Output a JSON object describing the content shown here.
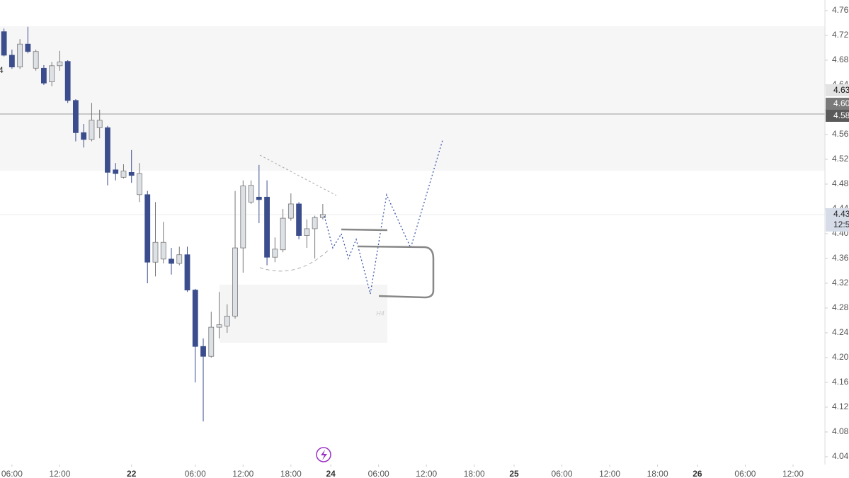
{
  "chart_data": {
    "type": "candlestick",
    "xlim": [
      -0.5,
      103
    ],
    "ylim": [
      4.0274,
      4.7771
    ],
    "yticks": [
      4.04,
      4.08,
      4.12,
      4.16,
      {
        "value": 4.2,
        "label": "4.20"
      },
      4.24,
      4.28,
      4.32,
      4.36,
      {
        "value": 4.4,
        "label": "4.40"
      },
      4.44,
      4.48,
      4.52,
      4.56,
      {
        "value": 4.6,
        "label": "4.60"
      },
      4.64,
      4.68,
      4.72,
      4.76
    ],
    "xticks": [
      {
        "value": 1,
        "label": "06:00"
      },
      {
        "value": 7,
        "label": "12:00"
      },
      {
        "value": 16,
        "label": "22"
      },
      {
        "value": 24,
        "label": "06:00"
      },
      {
        "value": 30,
        "label": "12:00"
      },
      {
        "value": 36,
        "label": "18:00"
      },
      {
        "value": 41,
        "label": "24"
      },
      {
        "value": 47,
        "label": "06:00"
      },
      {
        "value": 53,
        "label": "12:00"
      },
      {
        "value": 59,
        "label": "18:00"
      },
      {
        "value": 64,
        "label": "25"
      },
      {
        "value": 70,
        "label": "06:00"
      },
      {
        "value": 76,
        "label": "12:00"
      },
      {
        "value": 82,
        "label": "18:00"
      },
      {
        "value": 87,
        "label": "26"
      },
      {
        "value": 93,
        "label": "06:00"
      },
      {
        "value": 99,
        "label": "12:00"
      }
    ],
    "open": [
      4.726,
      4.688,
      4.669,
      4.706,
      4.667,
      4.667,
      4.645,
      4.671,
      4.678,
      4.615,
      4.563,
      4.552,
      4.571,
      4.571,
      4.503,
      4.491,
      4.499,
      4.463,
      4.463,
      4.354,
      4.359,
      4.359,
      4.352,
      4.366,
      4.309,
      4.218,
      4.202,
      4.249,
      4.251,
      4.267,
      4.377,
      4.451,
      4.459,
      4.459,
      4.362,
      4.374,
      4.425,
      4.448,
      4.397,
      4.408,
      4.426
    ],
    "high": [
      4.731,
      4.697,
      4.714,
      4.734,
      4.697,
      4.672,
      4.677,
      4.695,
      4.68,
      4.617,
      4.577,
      4.611,
      4.6,
      4.574,
      4.514,
      4.512,
      4.535,
      4.514,
      4.469,
      4.451,
      4.419,
      4.377,
      4.379,
      4.379,
      4.311,
      4.231,
      4.274,
      4.306,
      4.286,
      4.469,
      4.486,
      4.486,
      4.511,
      4.486,
      4.394,
      4.44,
      4.465,
      4.451,
      4.423,
      4.429,
      4.448
    ],
    "low": [
      4.686,
      4.666,
      4.666,
      4.691,
      4.663,
      4.64,
      4.638,
      4.663,
      4.611,
      4.549,
      4.539,
      4.549,
      4.554,
      4.478,
      4.486,
      4.489,
      4.482,
      4.451,
      4.32,
      4.331,
      4.352,
      4.334,
      4.349,
      4.306,
      4.16,
      4.097,
      4.2,
      4.231,
      4.24,
      4.263,
      4.337,
      4.448,
      4.417,
      4.349,
      4.354,
      4.37,
      4.421,
      4.391,
      4.377,
      4.36,
      4.423
    ],
    "close": [
      4.688,
      4.669,
      4.706,
      4.694,
      4.694,
      4.643,
      4.671,
      4.677,
      4.615,
      4.563,
      4.552,
      4.583,
      4.583,
      4.499,
      4.497,
      4.501,
      4.494,
      4.497,
      4.354,
      4.386,
      4.386,
      4.352,
      4.366,
      4.309,
      4.218,
      4.202,
      4.249,
      4.253,
      4.267,
      4.377,
      4.477,
      4.478,
      4.455,
      4.362,
      4.375,
      4.425,
      4.448,
      4.397,
      4.408,
      4.426,
      4.431
    ],
    "up_color": "#dde1e6",
    "down_color": "#3b4d8c",
    "price_labels": [
      "4.63",
      "4.60",
      "4.58",
      "4.43",
      "12:5"
    ],
    "zone_label": "H4",
    "left_label": "4"
  }
}
